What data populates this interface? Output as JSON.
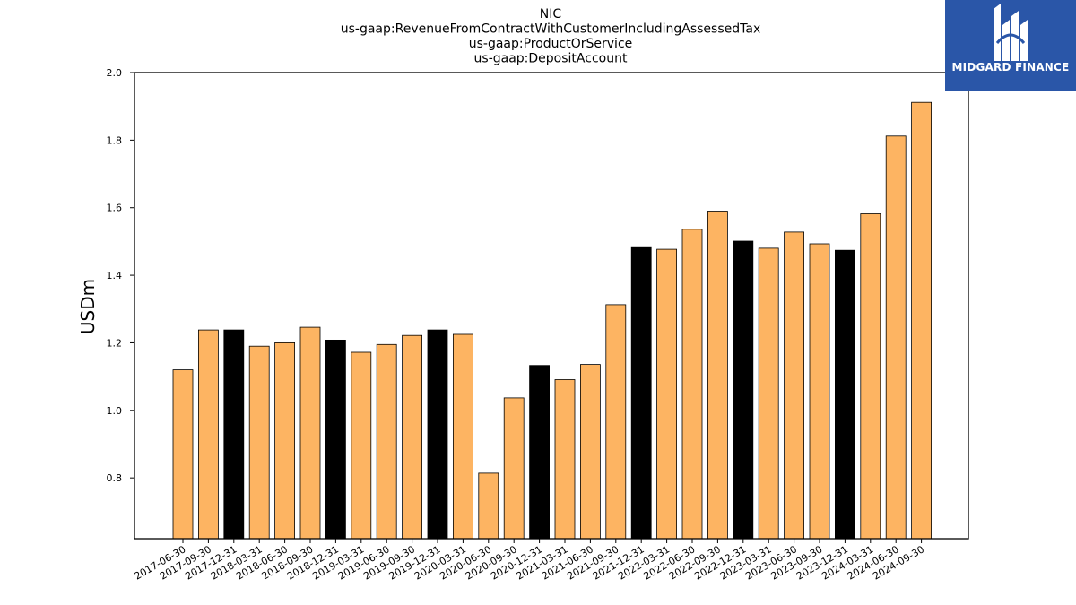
{
  "chart_data": {
    "type": "bar",
    "title_lines": [
      "NIC",
      "us-gaap:RevenueFromContractWithCustomerIncludingAssessedTax",
      "us-gaap:ProductOrService",
      "us-gaap:DepositAccount"
    ],
    "ylabel": "USDm",
    "ylim": [
      0.62,
      2.0
    ],
    "yticks": [
      "0.8",
      "1.0",
      "1.2",
      "1.4",
      "1.6",
      "1.8",
      "2.0"
    ],
    "categories": [
      "2017-06-30",
      "2017-09-30",
      "2017-12-31",
      "2018-03-31",
      "2018-06-30",
      "2018-09-30",
      "2018-12-31",
      "2019-03-31",
      "2019-06-30",
      "2019-09-30",
      "2019-12-31",
      "2020-03-31",
      "2020-06-30",
      "2020-09-30",
      "2020-12-31",
      "2021-03-31",
      "2021-06-30",
      "2021-09-30",
      "2021-12-31",
      "2022-03-31",
      "2022-06-30",
      "2022-09-30",
      "2022-12-31",
      "2023-03-31",
      "2023-06-30",
      "2023-09-30",
      "2023-12-31",
      "2024-03-31",
      "2024-06-30",
      "2024-09-30"
    ],
    "values": [
      1.12,
      1.238,
      1.238,
      1.19,
      1.2,
      1.246,
      1.208,
      1.172,
      1.195,
      1.222,
      1.238,
      1.225,
      0.814,
      1.037,
      1.133,
      1.091,
      1.136,
      1.313,
      1.482,
      1.477,
      1.536,
      1.59,
      1.501,
      1.48,
      1.528,
      1.493,
      1.474,
      1.582,
      1.812,
      1.912
    ],
    "bar_colors": [
      "#fdb462",
      "#fdb462",
      "#000000",
      "#fdb462",
      "#fdb462",
      "#fdb462",
      "#000000",
      "#fdb462",
      "#fdb462",
      "#fdb462",
      "#000000",
      "#fdb462",
      "#fdb462",
      "#fdb462",
      "#000000",
      "#fdb462",
      "#fdb462",
      "#fdb462",
      "#000000",
      "#fdb462",
      "#fdb462",
      "#fdb462",
      "#000000",
      "#fdb462",
      "#fdb462",
      "#fdb462",
      "#000000",
      "#fdb462",
      "#fdb462",
      "#fdb462"
    ],
    "grid": false,
    "legend": "none"
  },
  "logo": {
    "text": "MIDGARD FINANCE",
    "background": "#2a56a8"
  }
}
